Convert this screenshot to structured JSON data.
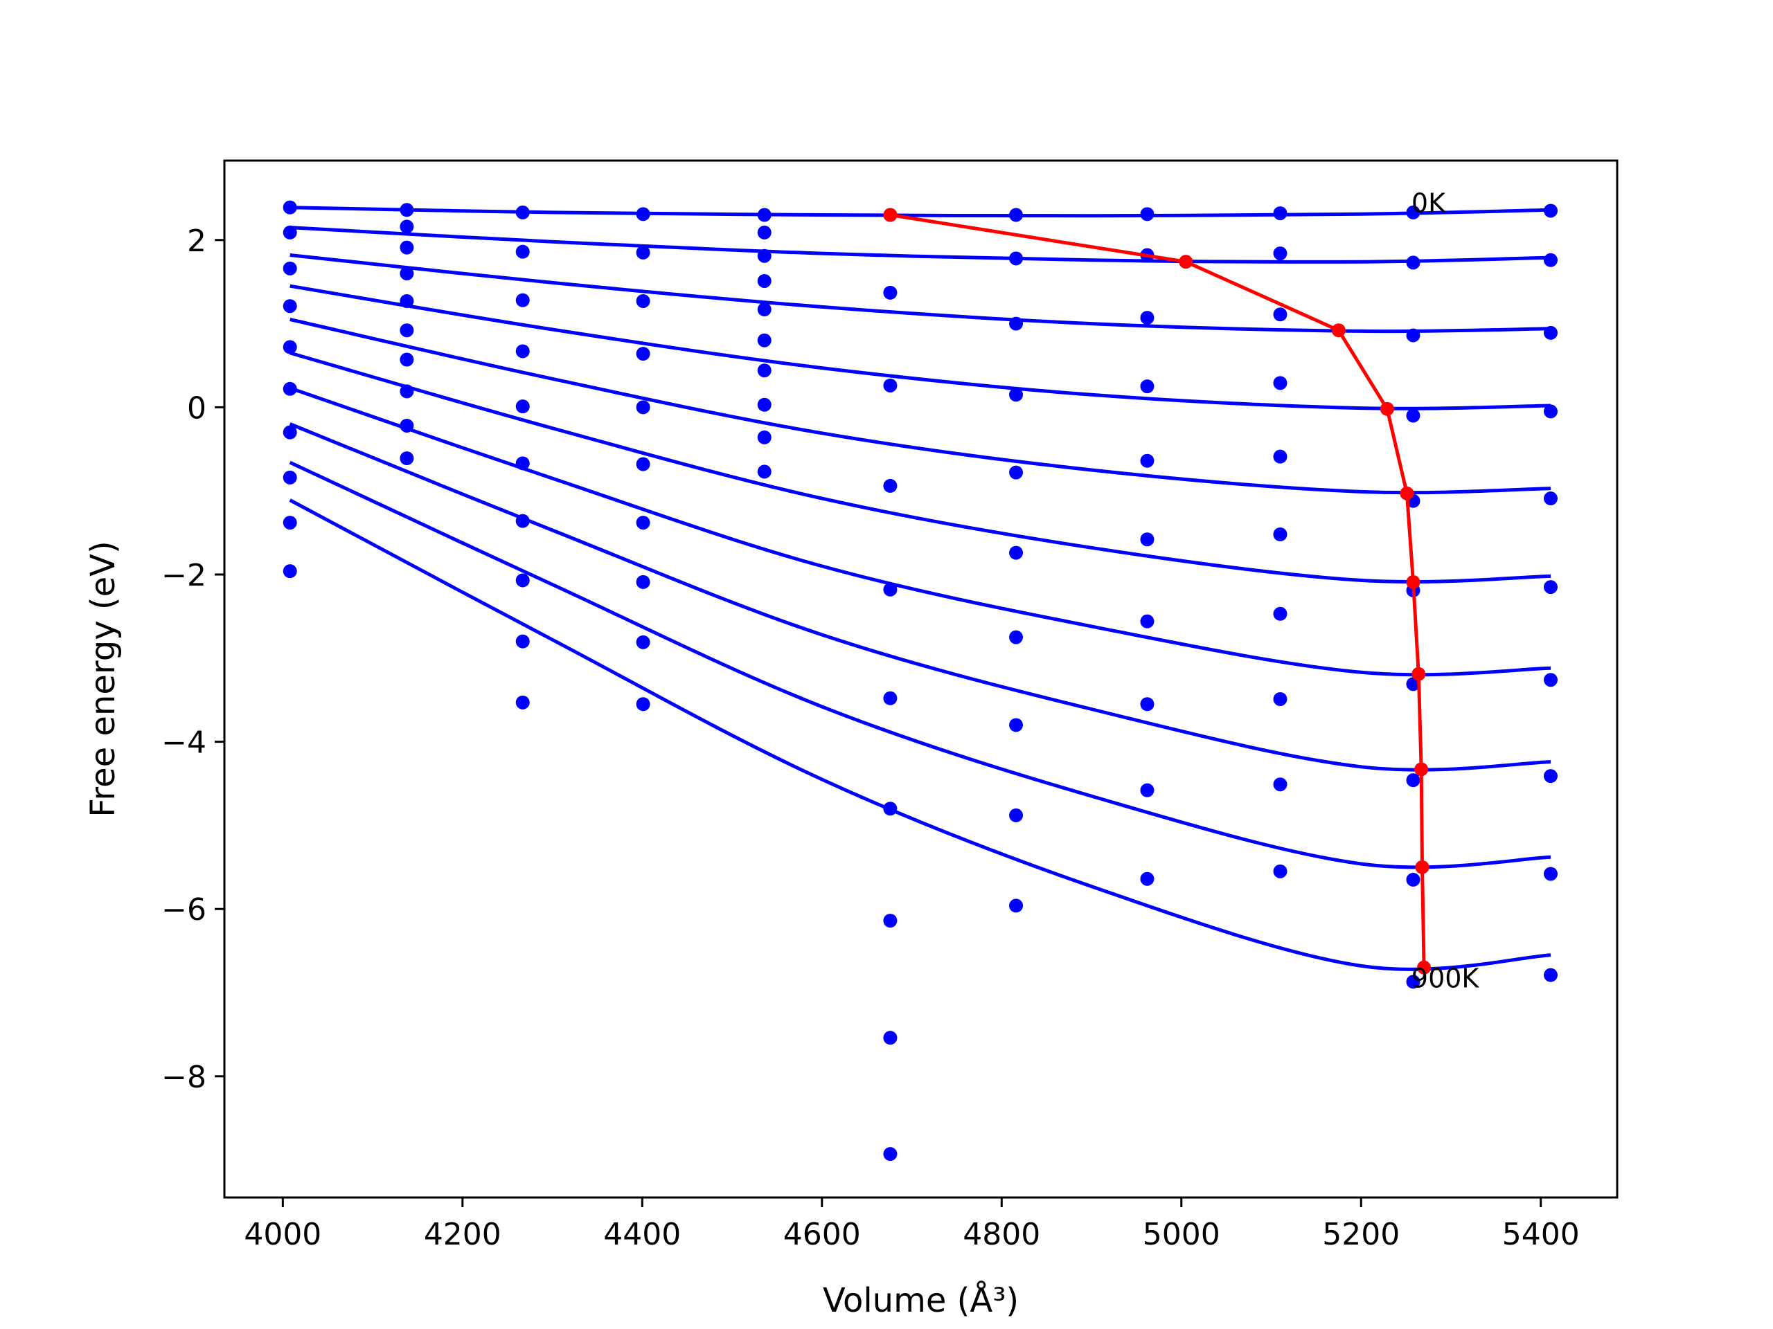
{
  "chart_data": {
    "type": "scatter",
    "title": "",
    "xlabel": "Volume (Å³)",
    "ylabel": "Free energy (eV)",
    "xlim": [
      3935,
      5485
    ],
    "ylim": [
      -9.45,
      2.95
    ],
    "xticks": [
      4000,
      4200,
      4400,
      4600,
      4800,
      5000,
      5200,
      5400
    ],
    "yticks": [
      -8,
      -6,
      -4,
      -2,
      0,
      2
    ],
    "xtick_labels": [
      "4000",
      "4200",
      "4400",
      "4600",
      "4800",
      "5000",
      "5200",
      "5400"
    ],
    "ytick_labels": [
      "−8",
      "−6",
      "−4",
      "−2",
      "0",
      "2"
    ],
    "grid": false,
    "colors": {
      "points": "#0000ff",
      "fits": "#0000ff",
      "minima": "#ff0000"
    },
    "annotations": [
      {
        "text": "0K",
        "x": 5256,
        "y": 2.45
      },
      {
        "text": "900K",
        "x": 5256,
        "y": -6.82
      }
    ],
    "points": {
      "x": [
        4008,
        4138,
        4267,
        4401,
        4536,
        4676,
        4816,
        4962,
        5110,
        5258,
        5411
      ],
      "series": [
        [
          2.39,
          2.36,
          2.33,
          2.31,
          2.3,
          2.3,
          2.3,
          2.31,
          2.32,
          2.33,
          2.35
        ],
        [
          2.09,
          1.91,
          1.86,
          1.85,
          2.09,
          1.37,
          1.78,
          1.82,
          1.84,
          1.73,
          1.76
        ],
        [
          1.66,
          1.6,
          1.28,
          1.27,
          1.51,
          0.26,
          1.0,
          1.07,
          1.11,
          0.86,
          0.89
        ],
        [
          1.21,
          1.27,
          0.67,
          0.64,
          1.17,
          -0.94,
          0.15,
          0.25,
          0.29,
          -0.1,
          -0.05
        ],
        [
          0.72,
          0.92,
          0.01,
          0.0,
          0.8,
          -2.18,
          -0.78,
          -0.64,
          -0.59,
          -1.12,
          -1.09
        ],
        [
          0.22,
          0.57,
          -0.67,
          -0.68,
          0.44,
          -3.48,
          -1.74,
          -1.58,
          -1.52,
          -2.19,
          -2.15
        ],
        [
          -0.3,
          0.19,
          -1.36,
          -1.38,
          0.03,
          -4.8,
          -2.75,
          -2.56,
          -2.47,
          -3.31,
          -3.26
        ],
        [
          -0.84,
          -0.22,
          -2.07,
          -2.09,
          -0.36,
          -6.14,
          -3.8,
          -3.55,
          -3.49,
          -4.46,
          -4.41
        ],
        [
          -1.38,
          -0.61,
          -2.8,
          -2.81,
          -0.77,
          -7.54,
          -4.88,
          -4.58,
          -4.51,
          -5.65,
          -5.58
        ],
        [
          -1.96,
          2.16,
          -3.53,
          -3.55,
          1.81,
          -8.93,
          -5.96,
          -5.64,
          -5.55,
          -6.87,
          -6.79
        ]
      ]
    },
    "fits": [
      {
        "x": [
          4008,
          4300,
          4600,
          4900,
          5200,
          5411
        ],
        "y": [
          2.39,
          2.33,
          2.3,
          2.29,
          2.31,
          2.36
        ]
      },
      {
        "x": [
          4008,
          4300,
          4600,
          4900,
          5200,
          5411
        ],
        "y": [
          2.15,
          1.98,
          1.84,
          1.76,
          1.74,
          1.79
        ]
      },
      {
        "x": [
          4008,
          4300,
          4600,
          4900,
          5200,
          5411
        ],
        "y": [
          1.82,
          1.49,
          1.2,
          1.0,
          0.91,
          0.94
        ]
      },
      {
        "x": [
          4008,
          4300,
          4600,
          4900,
          5200,
          5411
        ],
        "y": [
          1.45,
          0.93,
          0.47,
          0.15,
          -0.01,
          0.02
        ]
      },
      {
        "x": [
          4008,
          4300,
          4600,
          4900,
          5200,
          5411
        ],
        "y": [
          1.05,
          0.34,
          -0.31,
          -0.75,
          -1.01,
          -0.97
        ]
      },
      {
        "x": [
          4008,
          4300,
          4600,
          4900,
          5200,
          5411
        ],
        "y": [
          0.65,
          -0.25,
          -1.09,
          -1.68,
          -2.07,
          -2.02
        ]
      },
      {
        "x": [
          4008,
          4300,
          4600,
          4900,
          5200,
          5411
        ],
        "y": [
          0.23,
          -0.85,
          -1.9,
          -2.62,
          -3.17,
          -3.12
        ]
      },
      {
        "x": [
          4008,
          4300,
          4600,
          4900,
          5200,
          5411
        ],
        "y": [
          -0.2,
          -1.47,
          -2.72,
          -3.61,
          -4.3,
          -4.24
        ]
      },
      {
        "x": [
          4008,
          4300,
          4600,
          4900,
          5200,
          5411
        ],
        "y": [
          -0.66,
          -2.12,
          -3.58,
          -4.65,
          -5.46,
          -5.38
        ]
      },
      {
        "x": [
          4008,
          4300,
          4600,
          4900,
          5200,
          5411
        ],
        "y": [
          -1.11,
          -2.78,
          -4.45,
          -5.73,
          -6.68,
          -6.55
        ]
      }
    ],
    "minima": {
      "x": [
        4676,
        5005,
        5175,
        5229,
        5251,
        5258,
        5264,
        5267,
        5268,
        5270
      ],
      "y": [
        2.3,
        1.74,
        0.92,
        -0.02,
        -1.03,
        -2.09,
        -3.19,
        -4.33,
        -5.5,
        -6.7
      ]
    }
  }
}
